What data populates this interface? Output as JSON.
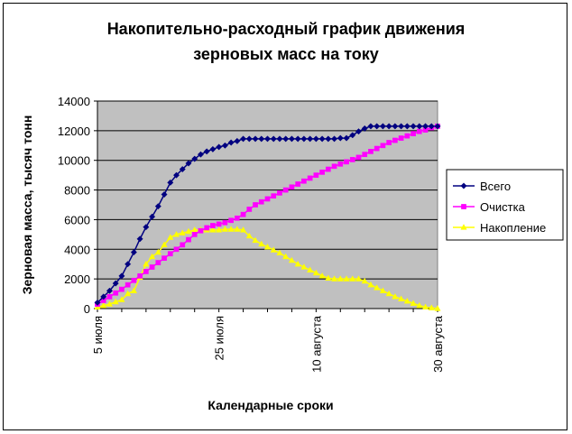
{
  "chart_data": {
    "type": "line",
    "title_lines": [
      "Накопительно-расходный график движения",
      "зерновых масс на току"
    ],
    "xlabel": "Календарные сроки",
    "ylabel": "Зерновая масса, тысяч тонн",
    "x_start": "5 июля",
    "x_tick_labels": [
      {
        "day": 0,
        "label": "5 июля"
      },
      {
        "day": 20,
        "label": "25 июля"
      },
      {
        "day": 36,
        "label": "10 августа"
      },
      {
        "day": 56,
        "label": "30 августа"
      }
    ],
    "xlim": [
      0,
      56
    ],
    "ylim": [
      0,
      14000
    ],
    "y_ticks": [
      0,
      2000,
      4000,
      6000,
      8000,
      10000,
      12000,
      14000
    ],
    "grid": "horizontal",
    "legend_position": "right",
    "plot_background": "#c0c0c0",
    "series": [
      {
        "name": "Всего",
        "color": "#000080",
        "marker": "diamond",
        "values": [
          400,
          800,
          1200,
          1700,
          2200,
          3000,
          3800,
          4700,
          5500,
          6200,
          6900,
          7700,
          8500,
          9000,
          9400,
          9800,
          10100,
          10400,
          10600,
          10750,
          10900,
          11000,
          11200,
          11300,
          11450,
          11450,
          11450,
          11450,
          11450,
          11450,
          11450,
          11450,
          11450,
          11450,
          11450,
          11450,
          11450,
          11450,
          11450,
          11450,
          11500,
          11500,
          11700,
          11950,
          12150,
          12300,
          12300,
          12300,
          12300,
          12300,
          12300,
          12300,
          12300,
          12300,
          12300,
          12300,
          12300
        ]
      },
      {
        "name": "Очистка",
        "color": "#ff00ff",
        "marker": "square",
        "values": [
          300,
          550,
          800,
          1050,
          1300,
          1600,
          1900,
          2200,
          2500,
          2800,
          3100,
          3400,
          3700,
          4000,
          4300,
          4650,
          5000,
          5250,
          5450,
          5600,
          5700,
          5800,
          5950,
          6100,
          6350,
          6700,
          7000,
          7200,
          7400,
          7600,
          7800,
          8000,
          8200,
          8400,
          8600,
          8800,
          9000,
          9200,
          9400,
          9600,
          9750,
          9900,
          10050,
          10200,
          10400,
          10600,
          10800,
          11000,
          11200,
          11350,
          11500,
          11650,
          11800,
          11950,
          12050,
          12200,
          12300
        ]
      },
      {
        "name": "Накопление",
        "color": "#ffff00",
        "marker": "triangle",
        "values": [
          100,
          200,
          300,
          450,
          600,
          1000,
          1200,
          2100,
          3000,
          3500,
          3800,
          4300,
          4800,
          5000,
          5100,
          5200,
          5300,
          5300,
          5300,
          5300,
          5300,
          5350,
          5350,
          5350,
          5300,
          4900,
          4600,
          4350,
          4150,
          3950,
          3750,
          3500,
          3250,
          3000,
          2800,
          2600,
          2400,
          2200,
          2050,
          2000,
          2000,
          2000,
          2000,
          2000,
          1850,
          1600,
          1400,
          1200,
          1000,
          800,
          650,
          500,
          350,
          200,
          100,
          50,
          0
        ]
      }
    ]
  }
}
